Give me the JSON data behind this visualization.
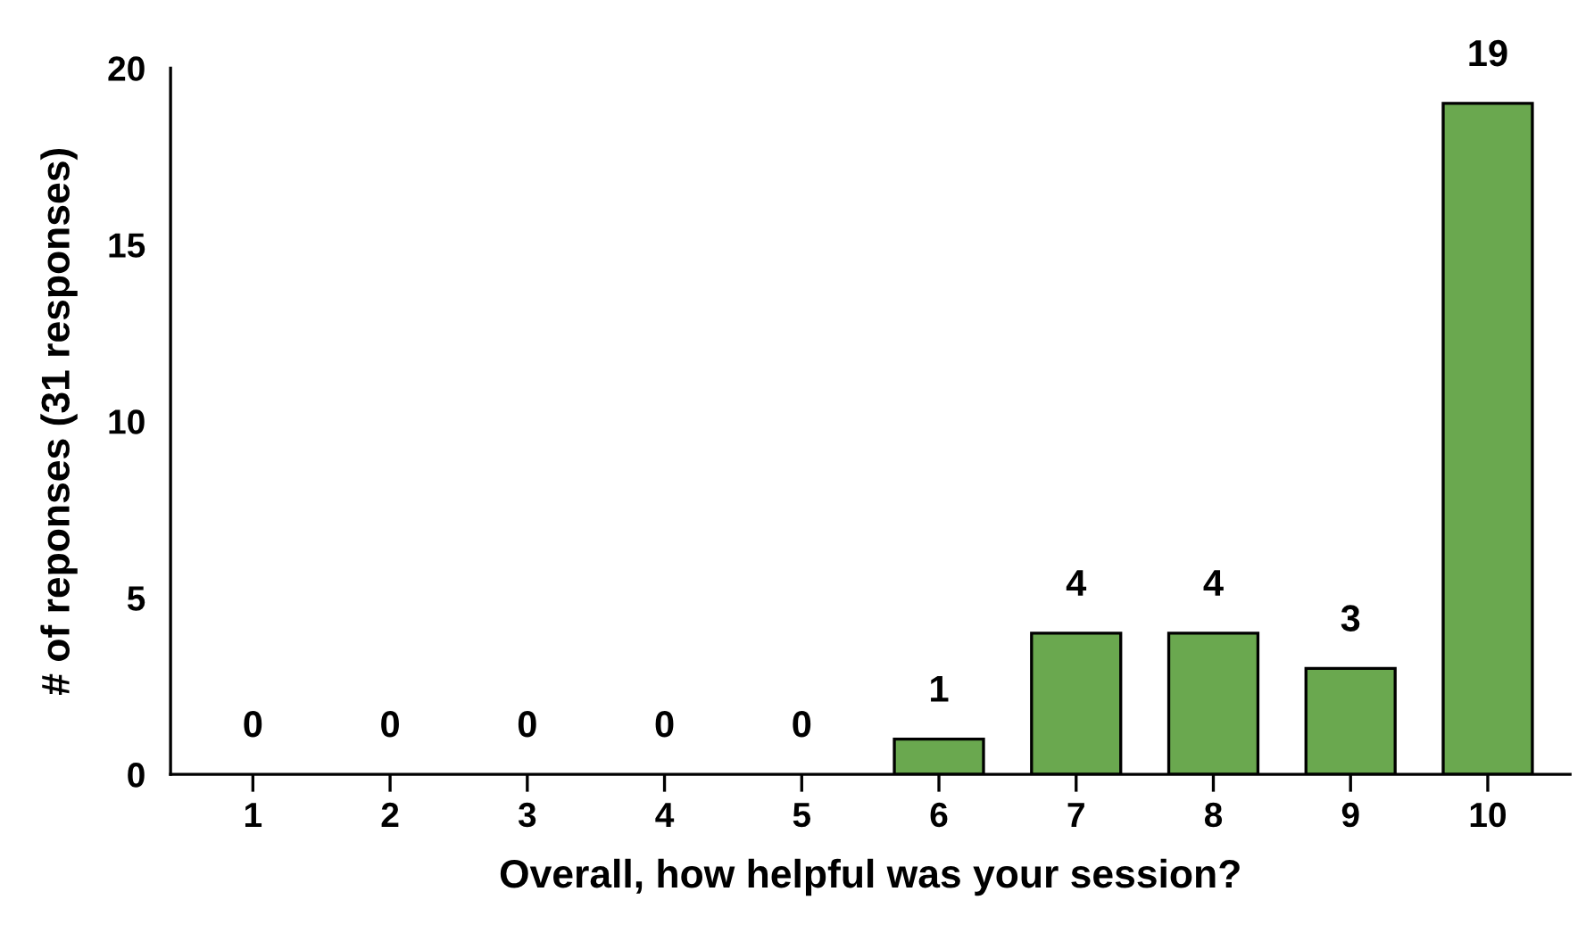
{
  "chart_data": {
    "type": "bar",
    "xlabel": "Overall, how helpful was your session?",
    "ylabel": "# of reponses (31 responses)",
    "categories": [
      "1",
      "2",
      "3",
      "4",
      "5",
      "6",
      "7",
      "8",
      "9",
      "10"
    ],
    "values": [
      0,
      0,
      0,
      0,
      0,
      1,
      4,
      4,
      3,
      19
    ],
    "color": "#6aa84f",
    "ylim": [
      0,
      20
    ],
    "yticks": [
      0,
      5,
      10,
      15,
      20
    ],
    "data_labels": true,
    "grid": false,
    "legend": false
  }
}
